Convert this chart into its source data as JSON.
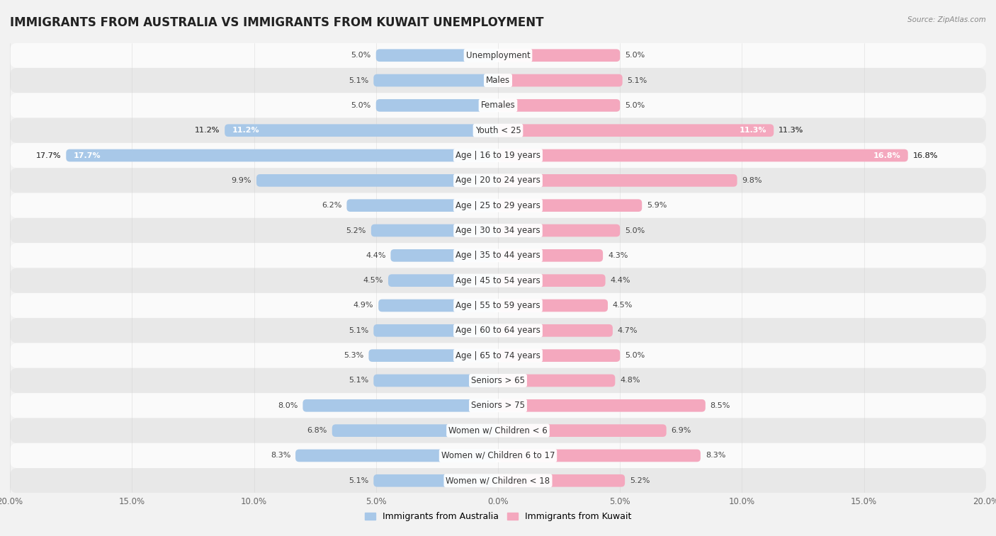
{
  "title": "IMMIGRANTS FROM AUSTRALIA VS IMMIGRANTS FROM KUWAIT UNEMPLOYMENT",
  "source": "Source: ZipAtlas.com",
  "categories": [
    "Unemployment",
    "Males",
    "Females",
    "Youth < 25",
    "Age | 16 to 19 years",
    "Age | 20 to 24 years",
    "Age | 25 to 29 years",
    "Age | 30 to 34 years",
    "Age | 35 to 44 years",
    "Age | 45 to 54 years",
    "Age | 55 to 59 years",
    "Age | 60 to 64 years",
    "Age | 65 to 74 years",
    "Seniors > 65",
    "Seniors > 75",
    "Women w/ Children < 6",
    "Women w/ Children 6 to 17",
    "Women w/ Children < 18"
  ],
  "australia_values": [
    5.0,
    5.1,
    5.0,
    11.2,
    17.7,
    9.9,
    6.2,
    5.2,
    4.4,
    4.5,
    4.9,
    5.1,
    5.3,
    5.1,
    8.0,
    6.8,
    8.3,
    5.1
  ],
  "kuwait_values": [
    5.0,
    5.1,
    5.0,
    11.3,
    16.8,
    9.8,
    5.9,
    5.0,
    4.3,
    4.4,
    4.5,
    4.7,
    5.0,
    4.8,
    8.5,
    6.9,
    8.3,
    5.2
  ],
  "australia_color": "#a8c8e8",
  "kuwait_color": "#f4a8be",
  "australia_label": "Immigrants from Australia",
  "kuwait_label": "Immigrants from Kuwait",
  "max_value": 20.0,
  "background_color": "#f2f2f2",
  "row_color_light": "#fafafa",
  "row_color_dark": "#e8e8e8",
  "title_fontsize": 12,
  "label_fontsize": 8.5,
  "value_fontsize": 8.0,
  "tick_fontsize": 8.5
}
